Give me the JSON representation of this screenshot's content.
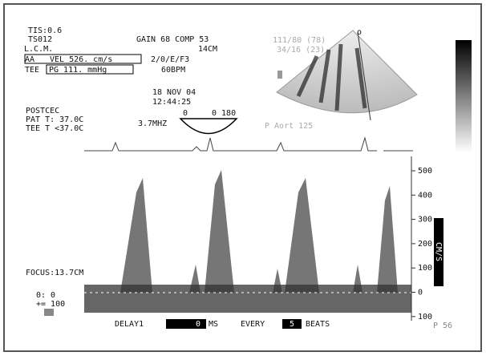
{
  "header": {
    "tis": "TIS:0.6",
    "transducer": "TS012",
    "label": "L.C.M.",
    "gain": "GAIN 68 COMP 53",
    "depth": "14CM",
    "settings": "2/0/E/F3",
    "heart_rate": "60BPM",
    "date": "18 NOV 04",
    "time": "12:44:25",
    "marker": "o"
  },
  "measurements": {
    "aa": "AA",
    "velocity": "VEL 526. cm/s",
    "tee": "TEE",
    "gradient": "PG 111. mmHg"
  },
  "patient": {
    "status": "POSTCEC",
    "pat_temp": "PAT T: 37.0C",
    "tee_temp": "TEE T <37.0C"
  },
  "probe": {
    "angle_left": "0",
    "angle_range": "0 180",
    "frequency": "3.7MHZ"
  },
  "pressure": {
    "line1": "111/80 (78)",
    "line2": "34/16 (23)",
    "aortic": "P Aort 125"
  },
  "doppler": {
    "focus": "FOCUS:13.7CM",
    "angle": "0: 0",
    "scale_step": "+= 100",
    "unit": "CM/S",
    "scale_labels": [
      "500",
      "400",
      "300",
      "200",
      "100",
      "0",
      "100"
    ]
  },
  "footer": {
    "delay": "DELAY1",
    "delay_value": "0",
    "delay_unit": "MS",
    "every": "EVERY",
    "beats_value": "5",
    "beats": "BEATS",
    "p_value": "P 56"
  }
}
